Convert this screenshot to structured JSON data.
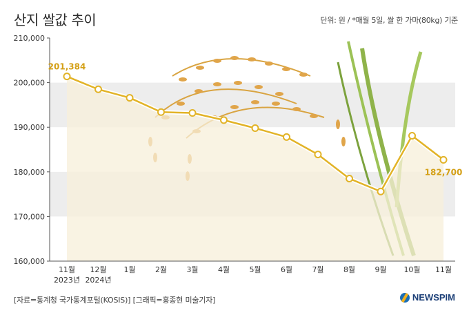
{
  "header": {
    "title": "산지 쌀값 추이",
    "unit_note": "단위: 원 / *매월 5일, 쌀 한 가마(80kg) 기준"
  },
  "footer": {
    "source": "[자료=통계청 국가통계포털(KOSIS)] [그래픽=홍종현 미술기자]",
    "logo_text": "NEWSPIM"
  },
  "colors": {
    "line": "#e2b327",
    "area": "#f7efd9",
    "label": "#d4a017",
    "band": "#ededed"
  },
  "chart_data": {
    "type": "line",
    "categories": [
      "11월",
      "12월",
      "1월",
      "2월",
      "3월",
      "4월",
      "5월",
      "6월",
      "7월",
      "8월",
      "9월",
      "10월",
      "11월"
    ],
    "category_sublabels": [
      "2023년",
      "2024년",
      "",
      "",
      "",
      "",
      "",
      "",
      "",
      "",
      "",
      "",
      ""
    ],
    "values": [
      201384,
      198500,
      196600,
      193400,
      193200,
      191600,
      189800,
      187800,
      183900,
      178500,
      175600,
      188100,
      182700
    ],
    "ylim": [
      160000,
      210000
    ],
    "yticks": [
      "160,000",
      "170,000",
      "180,000",
      "190,000",
      "200,000",
      "210,000"
    ],
    "data_labels": {
      "first": "201,384",
      "last": "182,700"
    },
    "grid": "alternating horizontal bands",
    "title": "",
    "xlabel": "",
    "ylabel": ""
  }
}
